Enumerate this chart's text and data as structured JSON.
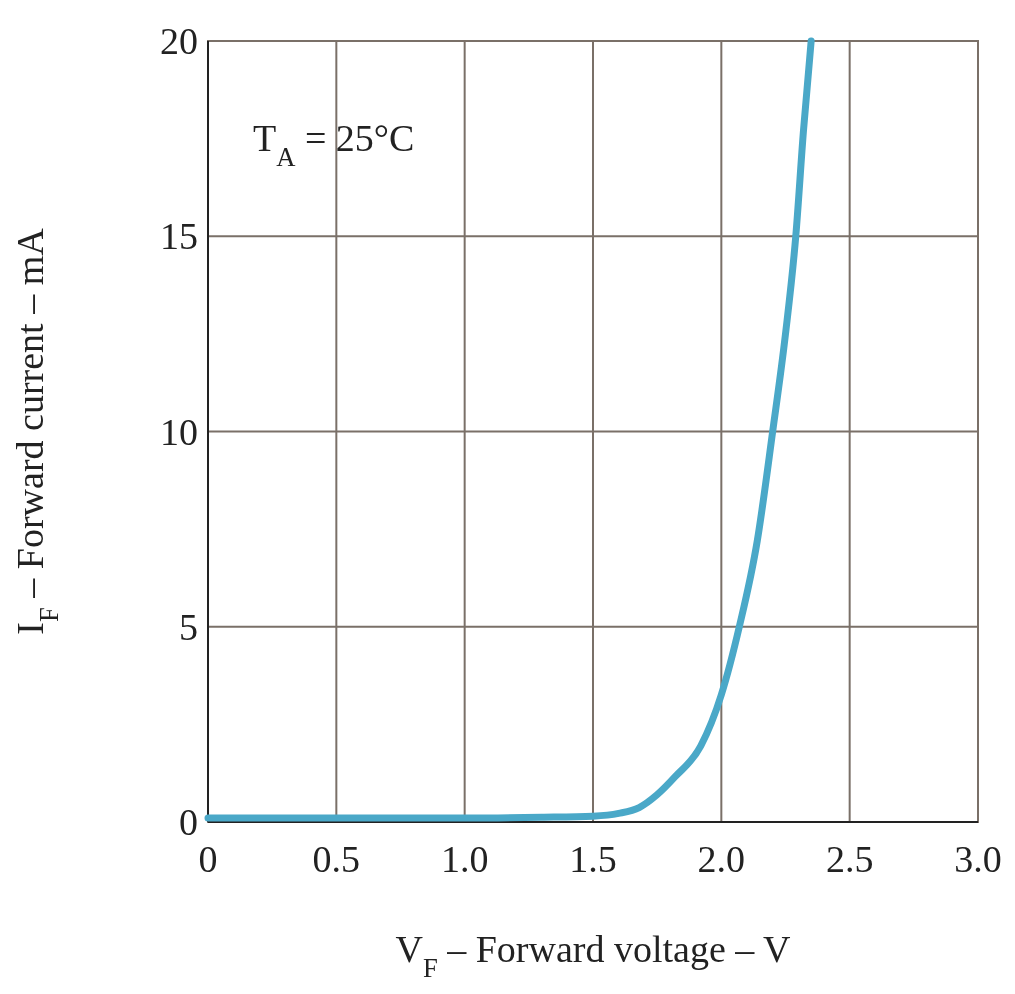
{
  "chart_data": {
    "type": "line",
    "xlabel": "V$_{F}$ – Forward voltage – V",
    "ylabel": "I$_{F}$ – Forward current – mA",
    "annotations": [
      "T$_{A}$ = 25°C"
    ],
    "xlim": [
      0,
      3
    ],
    "xticks": [
      0,
      0.5,
      "1.0",
      1.5,
      "2.0",
      2.5,
      "3.0"
    ],
    "ylim": [
      0,
      20
    ],
    "yticks": [
      0,
      5,
      10,
      15,
      20
    ],
    "grid": true,
    "series": [
      {
        "color": "#4aa8c8",
        "x": [
          0,
          0.5,
          1.0,
          1.3,
          1.5,
          1.6,
          1.68,
          1.75,
          1.82,
          1.92,
          2.0,
          2.07,
          2.14,
          2.2,
          2.25,
          2.29,
          2.32,
          2.35
        ],
        "values": [
          0.1,
          0.1,
          0.1,
          0.12,
          0.15,
          0.22,
          0.37,
          0.7,
          1.16,
          1.95,
          3.26,
          5.0,
          7.2,
          10,
          12.5,
          15,
          17.7,
          20
        ]
      }
    ]
  }
}
